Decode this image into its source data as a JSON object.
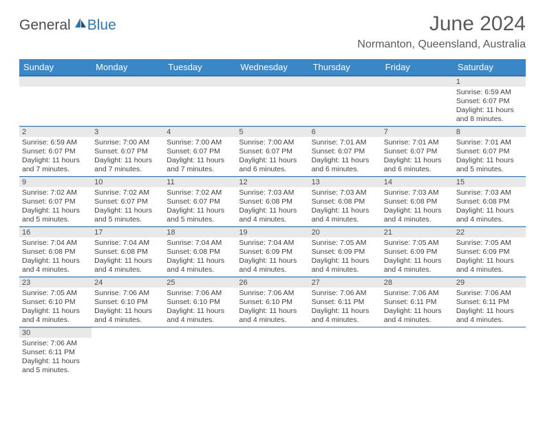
{
  "logo": {
    "general": "General",
    "blue": "Blue"
  },
  "title": "June 2024",
  "location": "Normanton, Queensland, Australia",
  "colors": {
    "header_bg": "#3a87c8",
    "header_border": "#2e75b6",
    "daynum_bg": "#e9e9e9",
    "text": "#404040",
    "title_text": "#595959"
  },
  "weekdays": [
    "Sunday",
    "Monday",
    "Tuesday",
    "Wednesday",
    "Thursday",
    "Friday",
    "Saturday"
  ],
  "weeks": [
    [
      null,
      null,
      null,
      null,
      null,
      null,
      {
        "n": "1",
        "sr": "Sunrise: 6:59 AM",
        "ss": "Sunset: 6:07 PM",
        "d1": "Daylight: 11 hours",
        "d2": "and 8 minutes."
      }
    ],
    [
      {
        "n": "2",
        "sr": "Sunrise: 6:59 AM",
        "ss": "Sunset: 6:07 PM",
        "d1": "Daylight: 11 hours",
        "d2": "and 7 minutes."
      },
      {
        "n": "3",
        "sr": "Sunrise: 7:00 AM",
        "ss": "Sunset: 6:07 PM",
        "d1": "Daylight: 11 hours",
        "d2": "and 7 minutes."
      },
      {
        "n": "4",
        "sr": "Sunrise: 7:00 AM",
        "ss": "Sunset: 6:07 PM",
        "d1": "Daylight: 11 hours",
        "d2": "and 7 minutes."
      },
      {
        "n": "5",
        "sr": "Sunrise: 7:00 AM",
        "ss": "Sunset: 6:07 PM",
        "d1": "Daylight: 11 hours",
        "d2": "and 6 minutes."
      },
      {
        "n": "6",
        "sr": "Sunrise: 7:01 AM",
        "ss": "Sunset: 6:07 PM",
        "d1": "Daylight: 11 hours",
        "d2": "and 6 minutes."
      },
      {
        "n": "7",
        "sr": "Sunrise: 7:01 AM",
        "ss": "Sunset: 6:07 PM",
        "d1": "Daylight: 11 hours",
        "d2": "and 6 minutes."
      },
      {
        "n": "8",
        "sr": "Sunrise: 7:01 AM",
        "ss": "Sunset: 6:07 PM",
        "d1": "Daylight: 11 hours",
        "d2": "and 5 minutes."
      }
    ],
    [
      {
        "n": "9",
        "sr": "Sunrise: 7:02 AM",
        "ss": "Sunset: 6:07 PM",
        "d1": "Daylight: 11 hours",
        "d2": "and 5 minutes."
      },
      {
        "n": "10",
        "sr": "Sunrise: 7:02 AM",
        "ss": "Sunset: 6:07 PM",
        "d1": "Daylight: 11 hours",
        "d2": "and 5 minutes."
      },
      {
        "n": "11",
        "sr": "Sunrise: 7:02 AM",
        "ss": "Sunset: 6:07 PM",
        "d1": "Daylight: 11 hours",
        "d2": "and 5 minutes."
      },
      {
        "n": "12",
        "sr": "Sunrise: 7:03 AM",
        "ss": "Sunset: 6:08 PM",
        "d1": "Daylight: 11 hours",
        "d2": "and 4 minutes."
      },
      {
        "n": "13",
        "sr": "Sunrise: 7:03 AM",
        "ss": "Sunset: 6:08 PM",
        "d1": "Daylight: 11 hours",
        "d2": "and 4 minutes."
      },
      {
        "n": "14",
        "sr": "Sunrise: 7:03 AM",
        "ss": "Sunset: 6:08 PM",
        "d1": "Daylight: 11 hours",
        "d2": "and 4 minutes."
      },
      {
        "n": "15",
        "sr": "Sunrise: 7:03 AM",
        "ss": "Sunset: 6:08 PM",
        "d1": "Daylight: 11 hours",
        "d2": "and 4 minutes."
      }
    ],
    [
      {
        "n": "16",
        "sr": "Sunrise: 7:04 AM",
        "ss": "Sunset: 6:08 PM",
        "d1": "Daylight: 11 hours",
        "d2": "and 4 minutes."
      },
      {
        "n": "17",
        "sr": "Sunrise: 7:04 AM",
        "ss": "Sunset: 6:08 PM",
        "d1": "Daylight: 11 hours",
        "d2": "and 4 minutes."
      },
      {
        "n": "18",
        "sr": "Sunrise: 7:04 AM",
        "ss": "Sunset: 6:08 PM",
        "d1": "Daylight: 11 hours",
        "d2": "and 4 minutes."
      },
      {
        "n": "19",
        "sr": "Sunrise: 7:04 AM",
        "ss": "Sunset: 6:09 PM",
        "d1": "Daylight: 11 hours",
        "d2": "and 4 minutes."
      },
      {
        "n": "20",
        "sr": "Sunrise: 7:05 AM",
        "ss": "Sunset: 6:09 PM",
        "d1": "Daylight: 11 hours",
        "d2": "and 4 minutes."
      },
      {
        "n": "21",
        "sr": "Sunrise: 7:05 AM",
        "ss": "Sunset: 6:09 PM",
        "d1": "Daylight: 11 hours",
        "d2": "and 4 minutes."
      },
      {
        "n": "22",
        "sr": "Sunrise: 7:05 AM",
        "ss": "Sunset: 6:09 PM",
        "d1": "Daylight: 11 hours",
        "d2": "and 4 minutes."
      }
    ],
    [
      {
        "n": "23",
        "sr": "Sunrise: 7:05 AM",
        "ss": "Sunset: 6:10 PM",
        "d1": "Daylight: 11 hours",
        "d2": "and 4 minutes."
      },
      {
        "n": "24",
        "sr": "Sunrise: 7:06 AM",
        "ss": "Sunset: 6:10 PM",
        "d1": "Daylight: 11 hours",
        "d2": "and 4 minutes."
      },
      {
        "n": "25",
        "sr": "Sunrise: 7:06 AM",
        "ss": "Sunset: 6:10 PM",
        "d1": "Daylight: 11 hours",
        "d2": "and 4 minutes."
      },
      {
        "n": "26",
        "sr": "Sunrise: 7:06 AM",
        "ss": "Sunset: 6:10 PM",
        "d1": "Daylight: 11 hours",
        "d2": "and 4 minutes."
      },
      {
        "n": "27",
        "sr": "Sunrise: 7:06 AM",
        "ss": "Sunset: 6:11 PM",
        "d1": "Daylight: 11 hours",
        "d2": "and 4 minutes."
      },
      {
        "n": "28",
        "sr": "Sunrise: 7:06 AM",
        "ss": "Sunset: 6:11 PM",
        "d1": "Daylight: 11 hours",
        "d2": "and 4 minutes."
      },
      {
        "n": "29",
        "sr": "Sunrise: 7:06 AM",
        "ss": "Sunset: 6:11 PM",
        "d1": "Daylight: 11 hours",
        "d2": "and 4 minutes."
      }
    ],
    [
      {
        "n": "30",
        "sr": "Sunrise: 7:06 AM",
        "ss": "Sunset: 6:11 PM",
        "d1": "Daylight: 11 hours",
        "d2": "and 5 minutes."
      },
      null,
      null,
      null,
      null,
      null,
      null
    ]
  ]
}
